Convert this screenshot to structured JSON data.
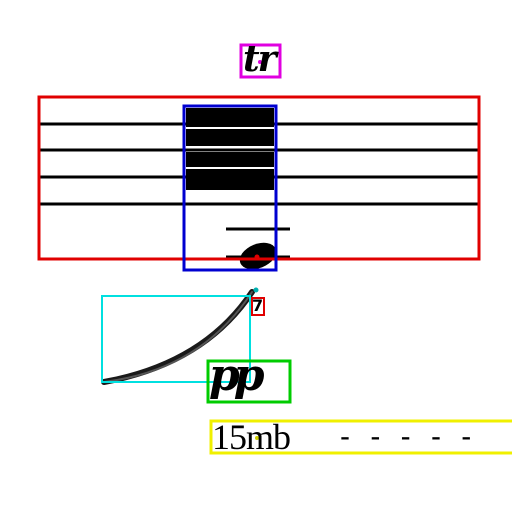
{
  "score_fragment": {
    "ornament_text": "tr",
    "dynamic_text": "pp",
    "octave_text": "15mb",
    "octave_dashes": "- - - - -",
    "fingering_text": "7",
    "staff_lines": 5,
    "ledger_lines": 2
  },
  "box_colors": {
    "staff": "#e00000",
    "note": "#0000d0",
    "ornament": "#e000e0",
    "dynamic": "#00cc00",
    "slur": "#00e0e0",
    "octave": "#f0f000",
    "fingering": "#e00000"
  }
}
